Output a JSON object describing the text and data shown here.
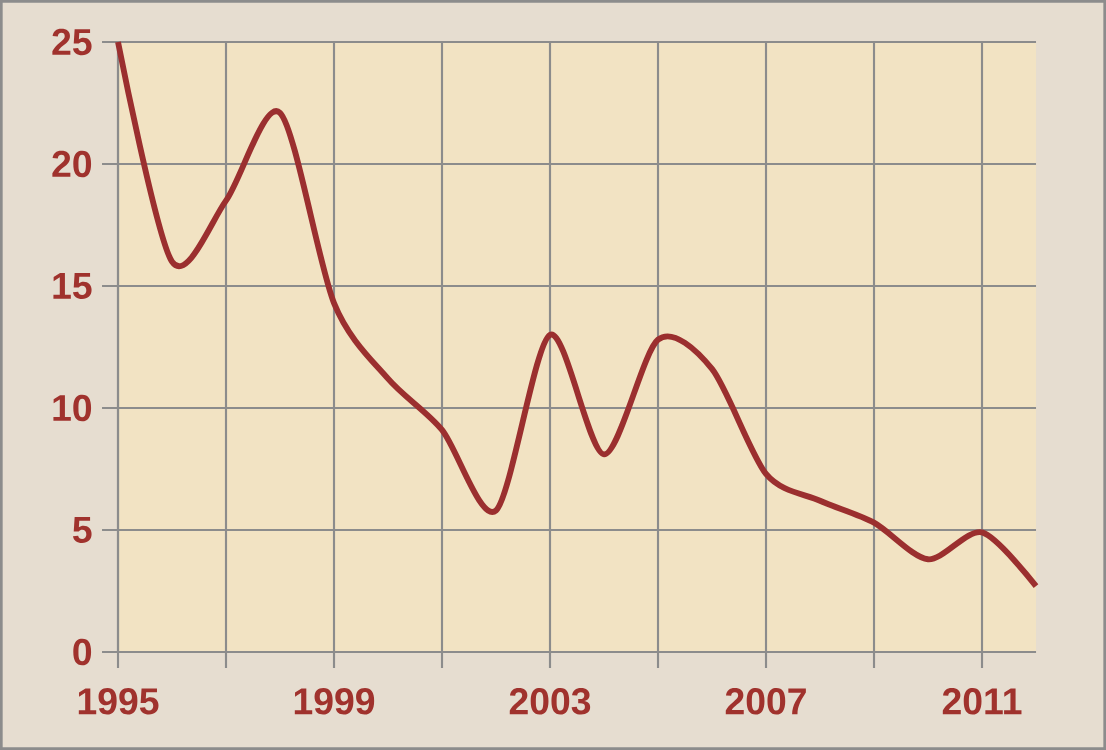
{
  "chart_data": {
    "type": "line",
    "x": [
      1995,
      1996,
      1997,
      1998,
      1999,
      2000,
      2001,
      2002,
      2003,
      2004,
      2005,
      2006,
      2007,
      2008,
      2009,
      2010,
      2011,
      2012
    ],
    "series": [
      {
        "color": "#9b2f2f",
        "values": [
          25,
          16,
          18.5,
          22.1,
          14.3,
          11.2,
          9.1,
          5.8,
          13.0,
          8.1,
          12.8,
          11.6,
          7.3,
          6.2,
          5.3,
          3.8,
          4.9,
          2.7
        ]
      }
    ],
    "xlim": [
      1995,
      2012
    ],
    "xticks": [
      1995,
      {
        "value": 1997,
        "label": null
      },
      1999,
      {
        "value": 2001,
        "label": null
      },
      2003,
      {
        "value": 2005,
        "label": null
      },
      2007,
      {
        "value": 2009,
        "label": null
      },
      2011
    ],
    "ylim": [
      0,
      25
    ],
    "yticks": [
      0,
      5,
      10,
      15,
      20,
      25
    ],
    "grid": true,
    "marker": "none",
    "line_style": "solid"
  }
}
